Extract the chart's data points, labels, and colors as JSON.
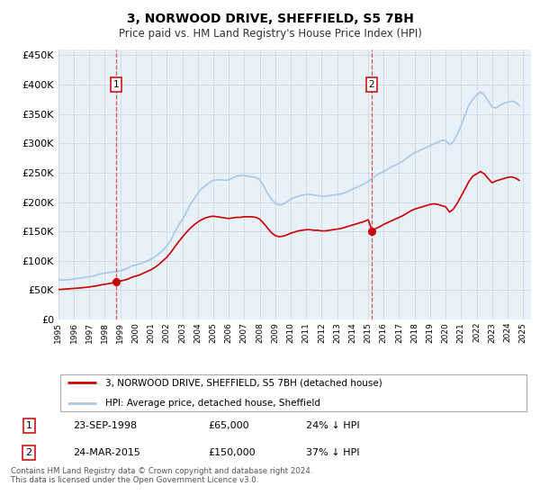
{
  "title": "3, NORWOOD DRIVE, SHEFFIELD, S5 7BH",
  "subtitle": "Price paid vs. HM Land Registry's House Price Index (HPI)",
  "xlim": [
    1995.0,
    2025.5
  ],
  "ylim": [
    0,
    460000
  ],
  "yticks": [
    0,
    50000,
    100000,
    150000,
    200000,
    250000,
    300000,
    350000,
    400000,
    450000
  ],
  "ytick_labels": [
    "£0",
    "£50K",
    "£100K",
    "£150K",
    "£200K",
    "£250K",
    "£300K",
    "£350K",
    "£400K",
    "£450K"
  ],
  "purchase1_date": 1998.73,
  "purchase1_price": 65000,
  "purchase1_label": "1",
  "purchase1_text": "23-SEP-1998",
  "purchase1_amount": "£65,000",
  "purchase1_hpi": "24% ↓ HPI",
  "purchase2_date": 2015.23,
  "purchase2_price": 150000,
  "purchase2_label": "2",
  "purchase2_text": "24-MAR-2015",
  "purchase2_amount": "£150,000",
  "purchase2_hpi": "37% ↓ HPI",
  "hpi_line_color": "#a8c8e8",
  "price_line_color": "#cc0000",
  "dot_color": "#cc0000",
  "vline_color": "#dd4444",
  "plot_bg_color": "#e8f0f8",
  "grid_color": "#c8d4e0",
  "legend_label_price": "3, NORWOOD DRIVE, SHEFFIELD, S5 7BH (detached house)",
  "legend_label_hpi": "HPI: Average price, detached house, Sheffield",
  "footer": "Contains HM Land Registry data © Crown copyright and database right 2024.\nThis data is licensed under the Open Government Licence v3.0.",
  "hpi_data_years": [
    1995.0,
    1995.25,
    1995.5,
    1995.75,
    1996.0,
    1996.25,
    1996.5,
    1996.75,
    1997.0,
    1997.25,
    1997.5,
    1997.75,
    1998.0,
    1998.25,
    1998.5,
    1998.75,
    1999.0,
    1999.25,
    1999.5,
    1999.75,
    2000.0,
    2000.25,
    2000.5,
    2000.75,
    2001.0,
    2001.25,
    2001.5,
    2001.75,
    2002.0,
    2002.25,
    2002.5,
    2002.75,
    2003.0,
    2003.25,
    2003.5,
    2003.75,
    2004.0,
    2004.25,
    2004.5,
    2004.75,
    2005.0,
    2005.25,
    2005.5,
    2005.75,
    2006.0,
    2006.25,
    2006.5,
    2006.75,
    2007.0,
    2007.25,
    2007.5,
    2007.75,
    2008.0,
    2008.25,
    2008.5,
    2008.75,
    2009.0,
    2009.25,
    2009.5,
    2009.75,
    2010.0,
    2010.25,
    2010.5,
    2010.75,
    2011.0,
    2011.25,
    2011.5,
    2011.75,
    2012.0,
    2012.25,
    2012.5,
    2012.75,
    2013.0,
    2013.25,
    2013.5,
    2013.75,
    2014.0,
    2014.25,
    2014.5,
    2014.75,
    2015.0,
    2015.25,
    2015.5,
    2015.75,
    2016.0,
    2016.25,
    2016.5,
    2016.75,
    2017.0,
    2017.25,
    2017.5,
    2017.75,
    2018.0,
    2018.25,
    2018.5,
    2018.75,
    2019.0,
    2019.25,
    2019.5,
    2019.75,
    2020.0,
    2020.25,
    2020.5,
    2020.75,
    2021.0,
    2021.25,
    2021.5,
    2021.75,
    2022.0,
    2022.25,
    2022.5,
    2022.75,
    2023.0,
    2023.25,
    2023.5,
    2023.75,
    2024.0,
    2024.25,
    2024.5,
    2024.75
  ],
  "hpi_data_values": [
    68000,
    67000,
    67500,
    68000,
    69000,
    70000,
    71000,
    72000,
    73000,
    74000,
    76000,
    78000,
    79000,
    80000,
    81000,
    82000,
    83000,
    85000,
    88000,
    91000,
    93000,
    95000,
    97000,
    100000,
    103000,
    107000,
    112000,
    118000,
    125000,
    135000,
    148000,
    160000,
    170000,
    182000,
    195000,
    205000,
    215000,
    223000,
    228000,
    233000,
    237000,
    238000,
    238000,
    237000,
    238000,
    241000,
    244000,
    245000,
    245000,
    244000,
    243000,
    242000,
    238000,
    228000,
    215000,
    205000,
    198000,
    195000,
    196000,
    200000,
    205000,
    208000,
    210000,
    212000,
    213000,
    213000,
    212000,
    211000,
    210000,
    210000,
    211000,
    212000,
    213000,
    214000,
    216000,
    219000,
    222000,
    225000,
    228000,
    231000,
    235000,
    240000,
    245000,
    249000,
    252000,
    256000,
    260000,
    263000,
    266000,
    270000,
    275000,
    280000,
    284000,
    287000,
    290000,
    293000,
    296000,
    299000,
    302000,
    305000,
    305000,
    298000,
    303000,
    315000,
    330000,
    348000,
    365000,
    375000,
    382000,
    388000,
    382000,
    372000,
    362000,
    360000,
    365000,
    368000,
    370000,
    372000,
    370000,
    365000
  ],
  "price_data_years": [
    1995.0,
    1995.25,
    1995.5,
    1995.75,
    1996.0,
    1996.25,
    1996.5,
    1996.75,
    1997.0,
    1997.25,
    1997.5,
    1997.75,
    1998.0,
    1998.25,
    1998.5,
    1998.75,
    1999.0,
    1999.25,
    1999.5,
    1999.75,
    2000.0,
    2000.25,
    2000.5,
    2000.75,
    2001.0,
    2001.25,
    2001.5,
    2001.75,
    2002.0,
    2002.25,
    2002.5,
    2002.75,
    2003.0,
    2003.25,
    2003.5,
    2003.75,
    2004.0,
    2004.25,
    2004.5,
    2004.75,
    2005.0,
    2005.25,
    2005.5,
    2005.75,
    2006.0,
    2006.25,
    2006.5,
    2006.75,
    2007.0,
    2007.25,
    2007.5,
    2007.75,
    2008.0,
    2008.25,
    2008.5,
    2008.75,
    2009.0,
    2009.25,
    2009.5,
    2009.75,
    2010.0,
    2010.25,
    2010.5,
    2010.75,
    2011.0,
    2011.25,
    2011.5,
    2011.75,
    2012.0,
    2012.25,
    2012.5,
    2012.75,
    2013.0,
    2013.25,
    2013.5,
    2013.75,
    2014.0,
    2014.25,
    2014.5,
    2014.75,
    2015.0,
    2015.25,
    2015.5,
    2015.75,
    2016.0,
    2016.25,
    2016.5,
    2016.75,
    2017.0,
    2017.25,
    2017.5,
    2017.75,
    2018.0,
    2018.25,
    2018.5,
    2018.75,
    2019.0,
    2019.25,
    2019.5,
    2019.75,
    2020.0,
    2020.25,
    2020.5,
    2020.75,
    2021.0,
    2021.25,
    2021.5,
    2021.75,
    2022.0,
    2022.25,
    2022.5,
    2022.75,
    2023.0,
    2023.25,
    2023.5,
    2023.75,
    2024.0,
    2024.25,
    2024.5,
    2024.75
  ],
  "price_data_values": [
    51000,
    51500,
    52000,
    52500,
    53000,
    53500,
    54000,
    54800,
    55500,
    56500,
    57500,
    59000,
    60000,
    61000,
    62500,
    64000,
    65500,
    67000,
    69000,
    72000,
    74000,
    76000,
    79000,
    82000,
    85000,
    89000,
    94000,
    100000,
    106000,
    114000,
    123000,
    132000,
    140000,
    148000,
    155000,
    161000,
    166000,
    170000,
    173000,
    175000,
    176000,
    175000,
    174000,
    173000,
    172000,
    173000,
    174000,
    174000,
    175000,
    175000,
    175000,
    174000,
    171000,
    164000,
    156000,
    148000,
    143000,
    141000,
    142000,
    144000,
    147000,
    149000,
    151000,
    152000,
    153000,
    153000,
    152000,
    152000,
    151000,
    151000,
    152000,
    153000,
    154000,
    155000,
    157000,
    159000,
    161000,
    163000,
    165000,
    167000,
    170000,
    152000,
    155000,
    158000,
    162000,
    165000,
    168000,
    171000,
    174000,
    177000,
    181000,
    185000,
    188000,
    190000,
    192000,
    194000,
    196000,
    197000,
    196000,
    194000,
    192000,
    183000,
    188000,
    198000,
    210000,
    222000,
    235000,
    244000,
    248000,
    252000,
    248000,
    240000,
    233000,
    236000,
    238000,
    240000,
    242000,
    243000,
    241000,
    237000
  ]
}
